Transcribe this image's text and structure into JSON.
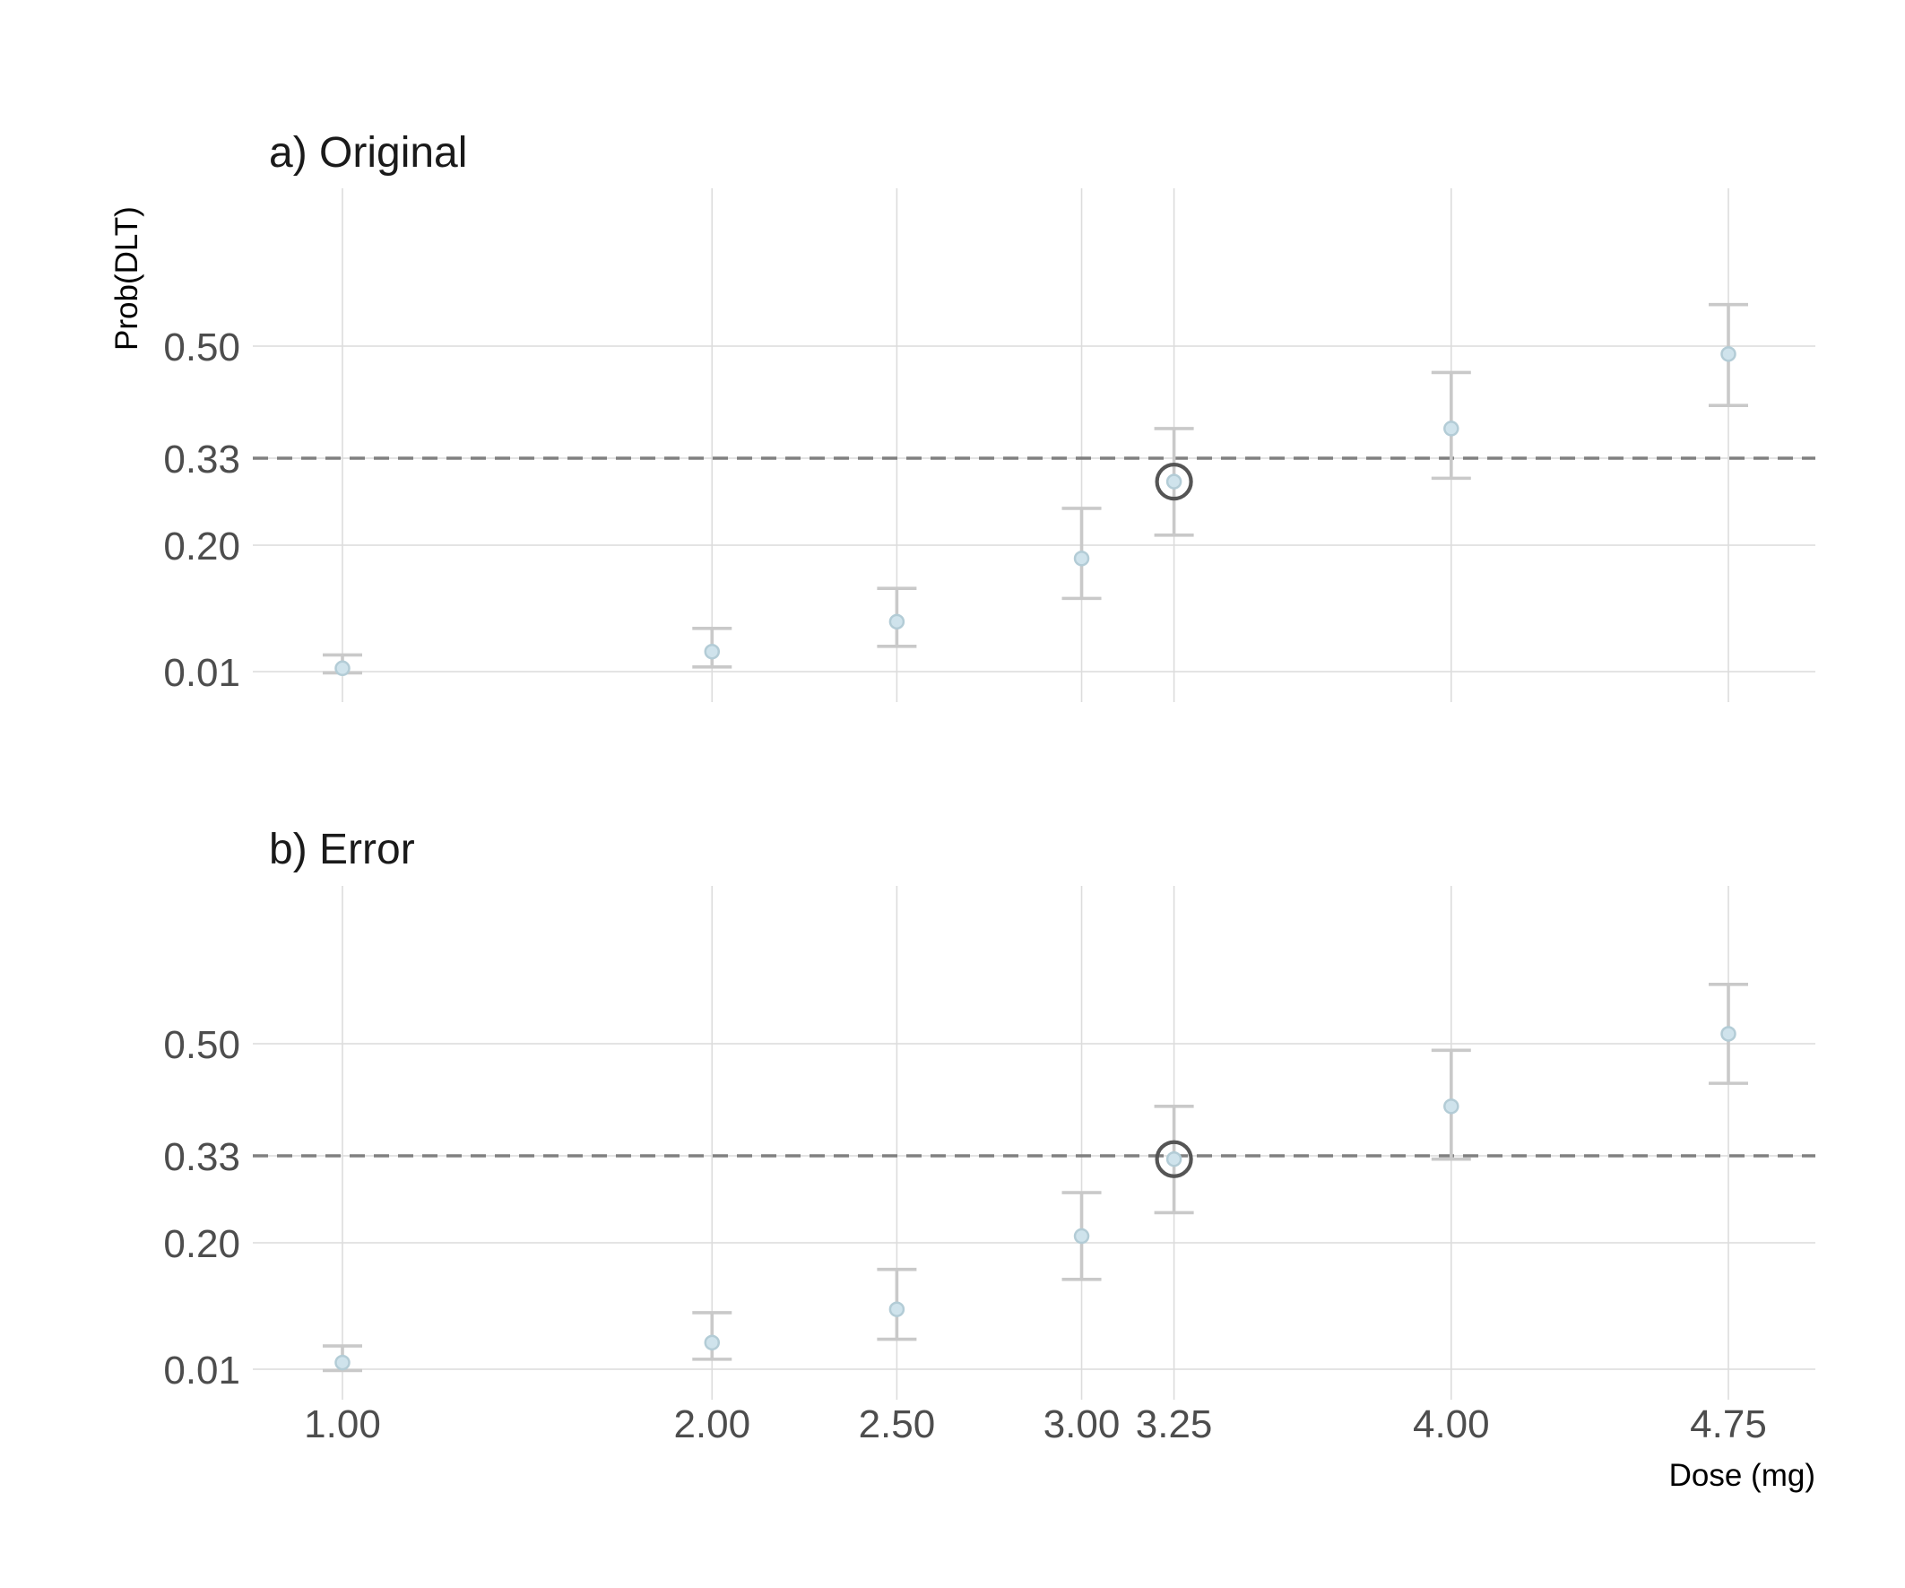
{
  "chart_data": {
    "type": "scatter",
    "x_label": "Dose (mg)",
    "y_label": "Prob(DLT)",
    "x_ticks": [
      "1.00",
      "2.00",
      "2.50",
      "3.00",
      "3.25",
      "4.00",
      "4.75"
    ],
    "y_ticks": [
      "0.01",
      "0.20",
      "0.33",
      "0.50"
    ],
    "target_toxicity": 0.33,
    "panels": [
      {
        "title": "a) Original",
        "points": [
          {
            "dose": 1.0,
            "prob": 0.015,
            "lower": 0.008,
            "upper": 0.035
          },
          {
            "dose": 2.0,
            "prob": 0.04,
            "lower": 0.017,
            "upper": 0.075
          },
          {
            "dose": 2.5,
            "prob": 0.085,
            "lower": 0.048,
            "upper": 0.135
          },
          {
            "dose": 3.0,
            "prob": 0.18,
            "lower": 0.12,
            "upper": 0.255
          },
          {
            "dose": 3.25,
            "prob": 0.295,
            "lower": 0.215,
            "upper": 0.375
          },
          {
            "dose": 4.0,
            "prob": 0.375,
            "lower": 0.3,
            "upper": 0.46
          },
          {
            "dose": 4.75,
            "prob": 0.488,
            "lower": 0.41,
            "upper": 0.563
          }
        ],
        "mtd_dose": 3.25
      },
      {
        "title": "b) Error",
        "points": [
          {
            "dose": 1.0,
            "prob": 0.02,
            "lower": 0.008,
            "upper": 0.045
          },
          {
            "dose": 2.0,
            "prob": 0.05,
            "lower": 0.025,
            "upper": 0.095
          },
          {
            "dose": 2.5,
            "prob": 0.1,
            "lower": 0.055,
            "upper": 0.16
          },
          {
            "dose": 3.0,
            "prob": 0.21,
            "lower": 0.145,
            "upper": 0.275
          },
          {
            "dose": 3.25,
            "prob": 0.325,
            "lower": 0.245,
            "upper": 0.405
          },
          {
            "dose": 4.0,
            "prob": 0.405,
            "lower": 0.325,
            "upper": 0.49
          },
          {
            "dose": 4.75,
            "prob": 0.515,
            "lower": 0.44,
            "upper": 0.59
          }
        ],
        "mtd_dose": 3.25
      }
    ],
    "grid": true
  }
}
